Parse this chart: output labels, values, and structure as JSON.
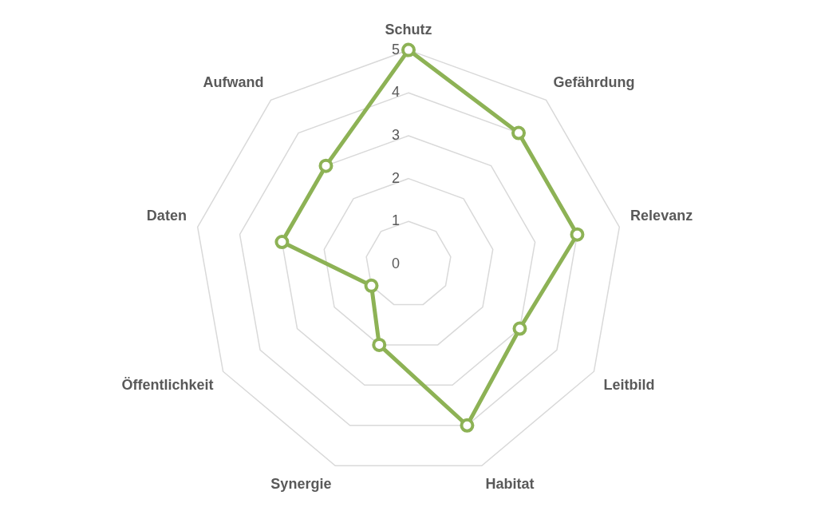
{
  "chart_data": {
    "type": "radar",
    "categories": [
      "Schutz",
      "Gefährdung",
      "Relevanz",
      "Leitbild",
      "Habitat",
      "Synergie",
      "Öffentlichkeit",
      "Daten",
      "Aufwand"
    ],
    "series": [
      {
        "color": "#8db255",
        "values": [
          5,
          4,
          4,
          3,
          4,
          2,
          1,
          3,
          3
        ]
      }
    ],
    "ylim": [
      0,
      5
    ],
    "yticks": [
      0,
      1,
      2,
      3,
      4,
      5
    ],
    "grid": true,
    "marker": "circle",
    "legend": false
  }
}
